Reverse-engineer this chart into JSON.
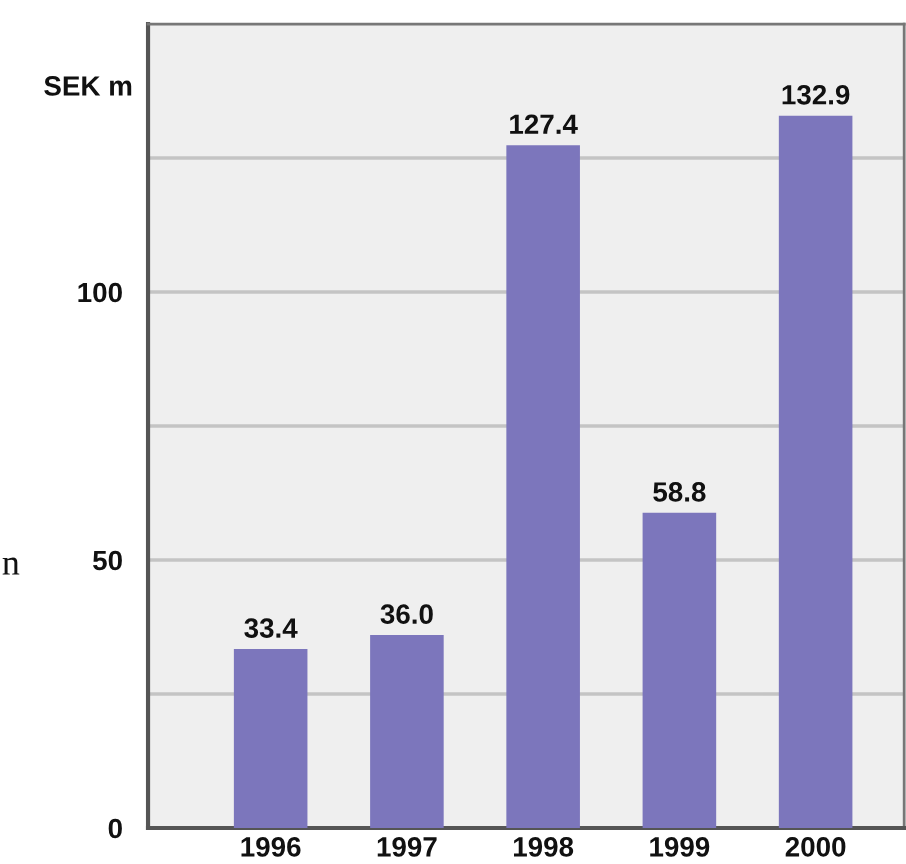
{
  "chart_data": {
    "type": "bar",
    "ylabel": "SEK m",
    "categories": [
      "1996",
      "1997",
      "1998",
      "1999",
      "2000"
    ],
    "values": [
      33.4,
      36.0,
      127.4,
      58.8,
      132.9
    ],
    "value_labels": [
      "33.4",
      "36.0",
      "127.4",
      "58.8",
      "132.9"
    ],
    "color": "#7c76bc",
    "ylim": [
      0,
      150
    ],
    "yticks": [
      0,
      {
        "value": 25,
        "label": null
      },
      50,
      {
        "value": 75,
        "label": null
      },
      100,
      {
        "value": 125,
        "label": null
      }
    ],
    "grid": "y",
    "annotations": [
      "n"
    ]
  }
}
